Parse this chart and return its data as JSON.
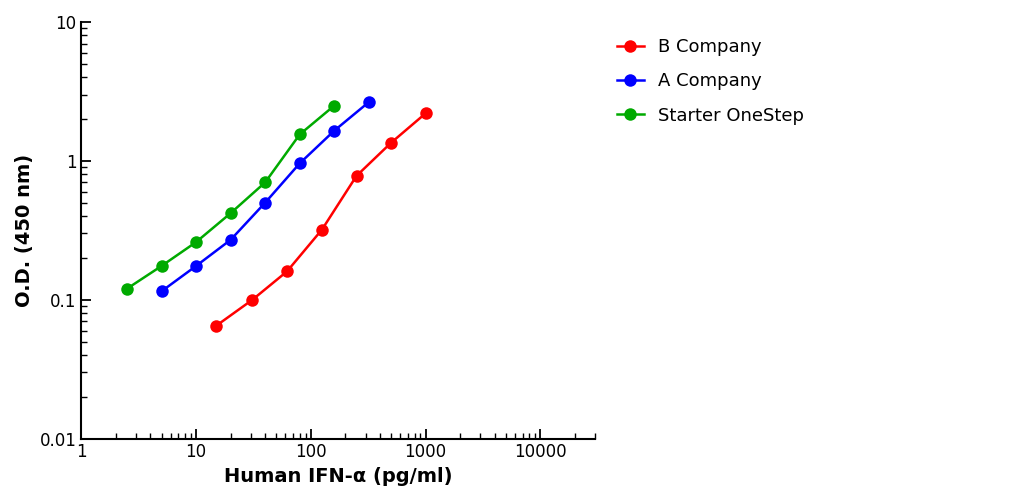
{
  "red_x": [
    15,
    31,
    62,
    125,
    250,
    500,
    1000
  ],
  "red_y": [
    0.065,
    0.1,
    0.16,
    0.32,
    0.78,
    1.35,
    2.2
  ],
  "blue_x": [
    5,
    10,
    20,
    40,
    80,
    160,
    320
  ],
  "blue_y": [
    0.115,
    0.175,
    0.27,
    0.5,
    0.96,
    1.65,
    2.65
  ],
  "green_x": [
    2.5,
    5,
    10,
    20,
    40,
    80,
    160
  ],
  "green_y": [
    0.12,
    0.175,
    0.26,
    0.42,
    0.7,
    1.55,
    2.5
  ],
  "red_color": "#FF0000",
  "blue_color": "#0000FF",
  "green_color": "#00AA00",
  "xlabel": "Human IFN-α (pg/ml)",
  "ylabel": "O.D. (450 nm)",
  "xlim_left": 1,
  "xlim_right": 30000,
  "ylim_bottom": 0.01,
  "ylim_top": 10,
  "legend_labels": [
    "B Company",
    "A Company",
    "Starter OneStep"
  ],
  "markersize": 9,
  "linewidth": 1.8,
  "background_color": "#FFFFFF",
  "xlabel_fontsize": 14,
  "ylabel_fontsize": 14,
  "legend_fontsize": 13,
  "tick_fontsize": 12
}
